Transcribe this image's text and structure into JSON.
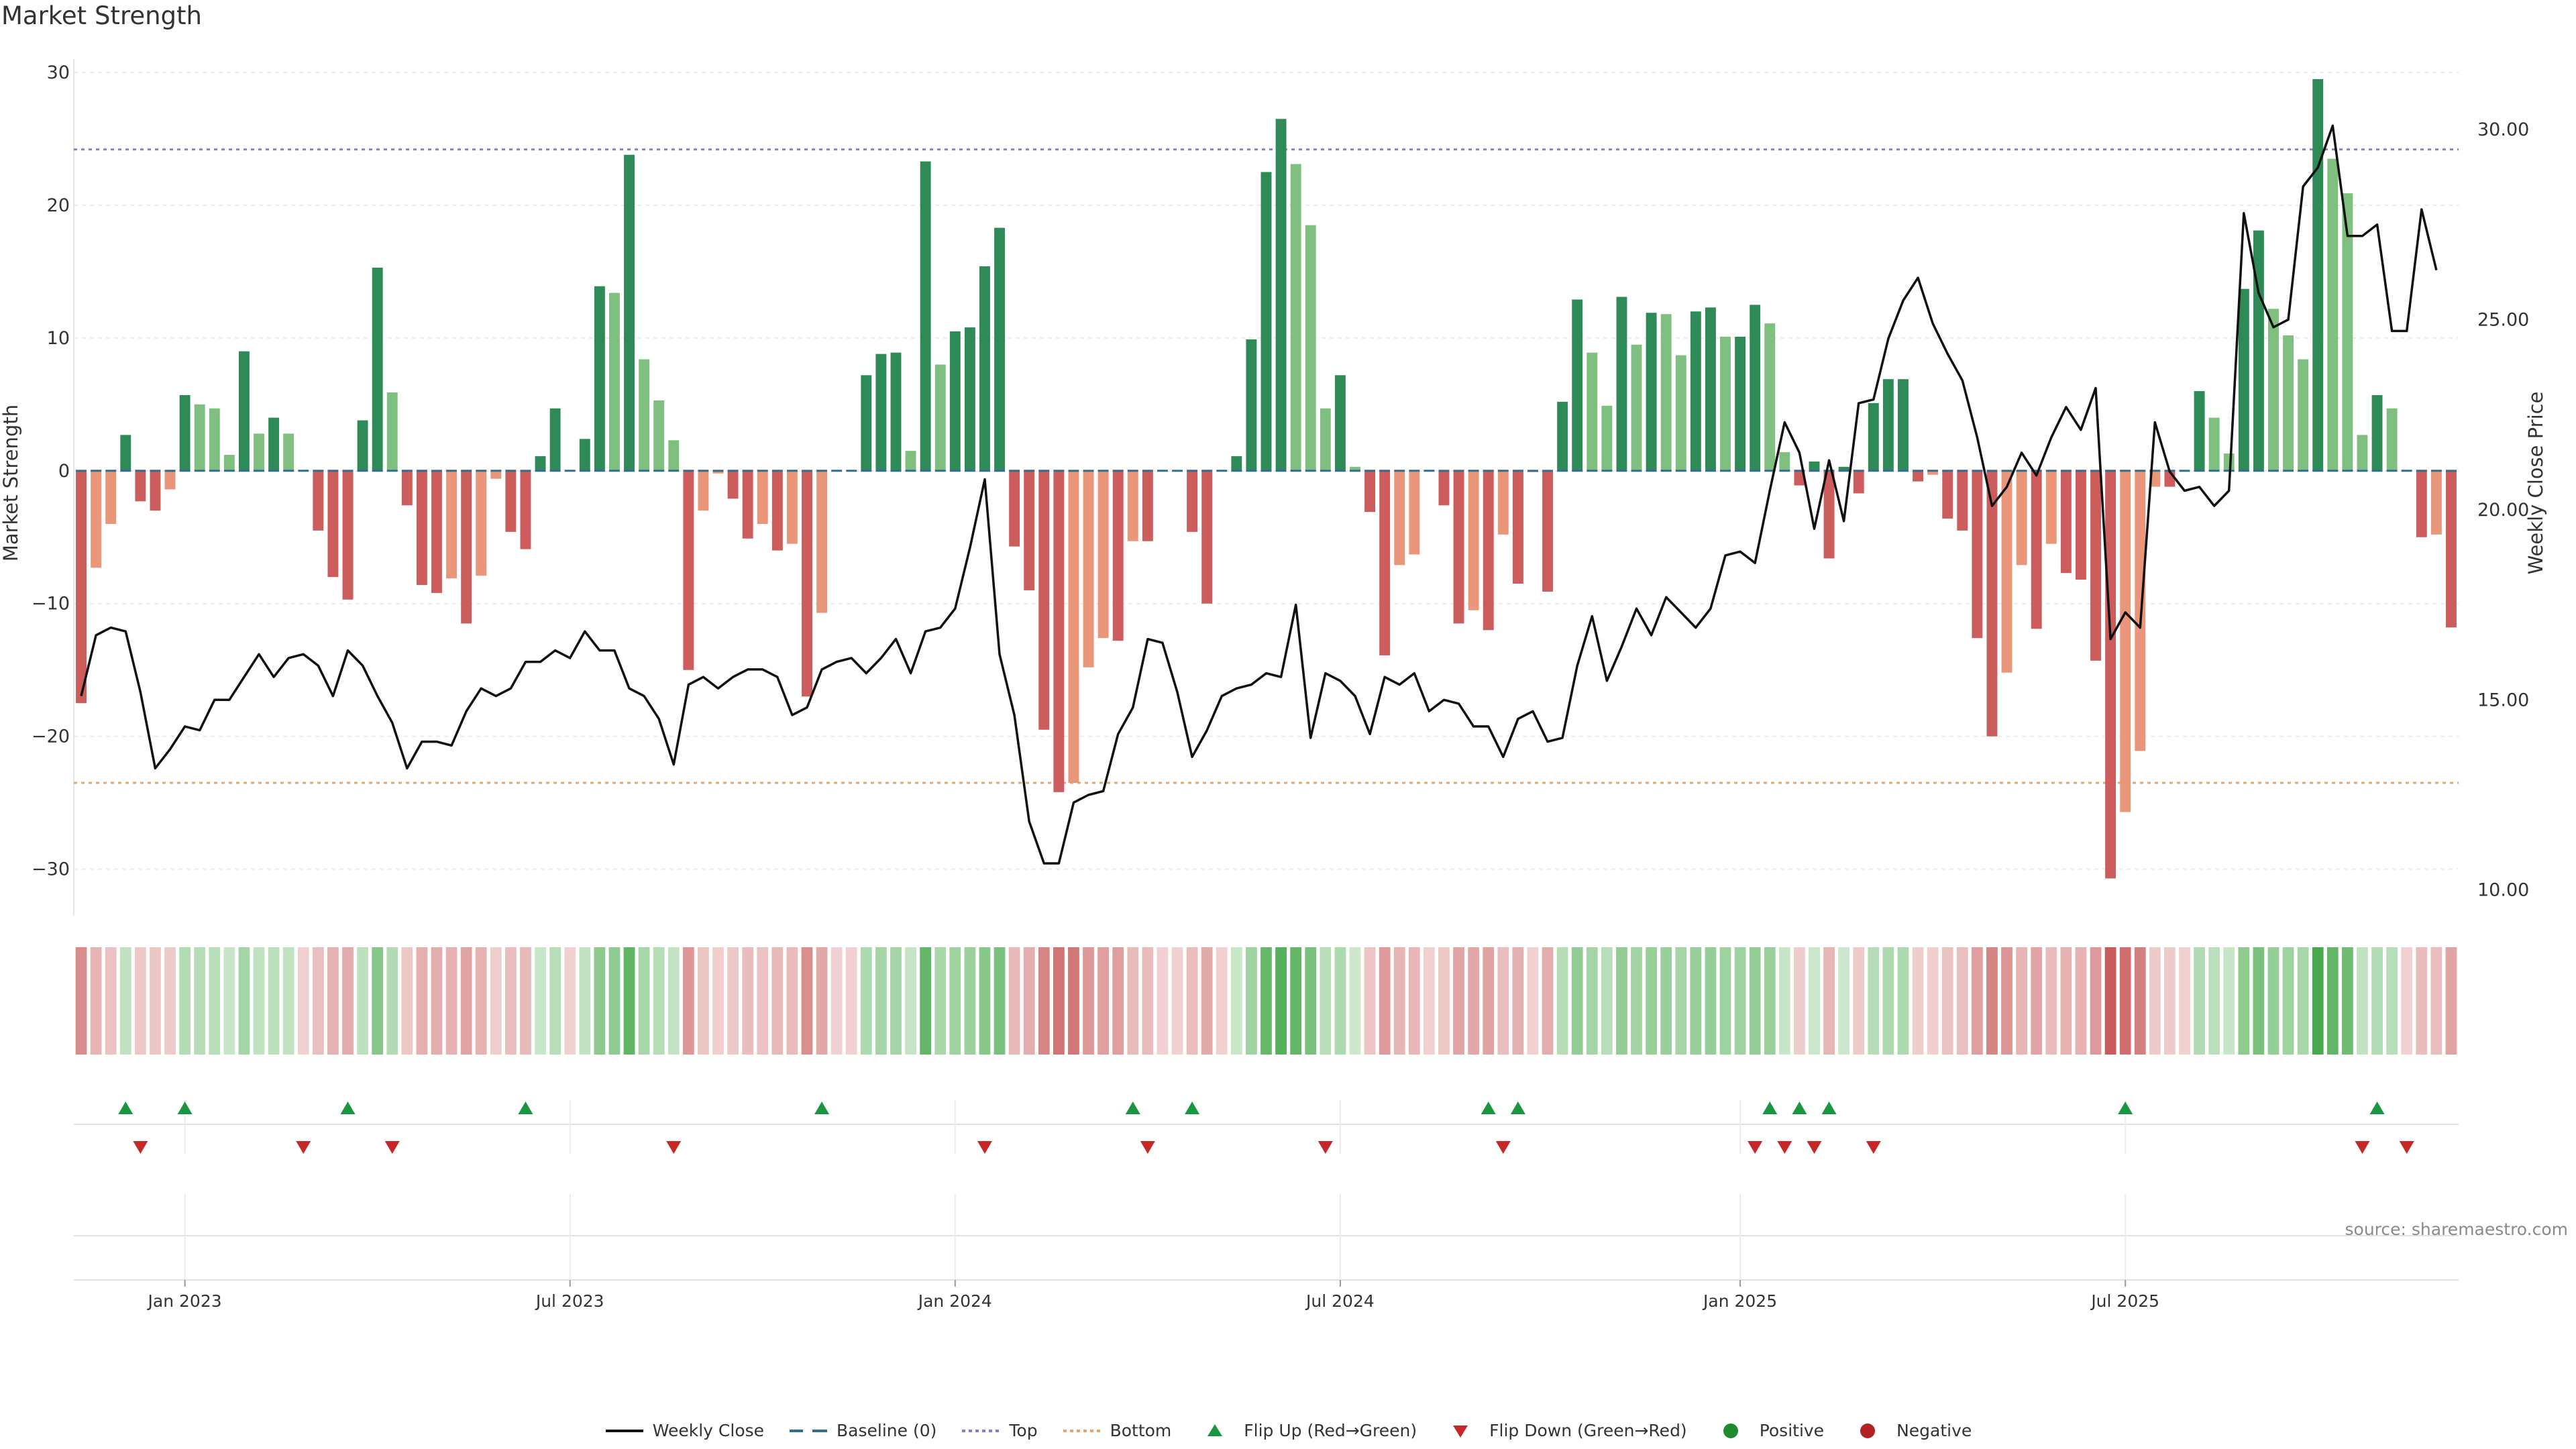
{
  "chart_data": {
    "type": "bar",
    "title": "Market Strength",
    "source_label": "source: sharemaestro.com",
    "y_left": {
      "label": "Market Strength",
      "ticks": [
        -30,
        -20,
        -10,
        0,
        10,
        20,
        30
      ],
      "range": [
        -33,
        30
      ]
    },
    "y_right": {
      "label": "Weekly Close Price",
      "ticks": [
        "10.00",
        "15.00",
        "20.00",
        "25.00",
        "30.00"
      ],
      "range": [
        9.5,
        31.5
      ]
    },
    "x_ticks": [
      "Jan 2023",
      "Jul 2023",
      "Jan 2024",
      "Jul 2024",
      "Jan 2025",
      "Jul 2025"
    ],
    "x_tick_weeks": [
      7,
      33,
      59,
      85,
      112,
      138
    ],
    "top_line": 24.2,
    "bottom_line": -23.5,
    "strength": [
      -17.5,
      -7.3,
      -4,
      2.7,
      -2.3,
      -3,
      -1.4,
      5.7,
      5,
      4.7,
      1.2,
      9,
      2.8,
      4,
      2.8,
      0,
      -4.5,
      -8,
      -9.7,
      3.8,
      15.3,
      5.9,
      -2.6,
      -8.6,
      -9.2,
      -8.1,
      -11.5,
      -7.9,
      -0.6,
      -4.6,
      -5.9,
      1.1,
      4.7,
      0,
      2.4,
      13.9,
      13.4,
      23.8,
      8.4,
      5.3,
      2.3,
      -15,
      -3,
      -0.2,
      -2.1,
      -5.1,
      -4,
      -6,
      -5.5,
      -17,
      -10.7,
      0,
      0,
      7.2,
      8.8,
      8.9,
      1.5,
      23.3,
      8,
      10.5,
      10.8,
      15.4,
      18.3,
      -5.7,
      -9,
      -19.5,
      -24.2,
      -23.5,
      -14.8,
      -12.6,
      -12.8,
      -5.3,
      -5.3,
      0,
      0,
      -4.6,
      -10,
      0,
      1.1,
      9.9,
      22.5,
      26.5,
      23.1,
      18.5,
      4.7,
      7.2,
      0.3,
      -3.1,
      -13.9,
      -7.1,
      -6.3,
      0,
      -2.6,
      -11.5,
      -10.5,
      -12,
      -4.8,
      -8.5,
      -0.1,
      -9.1,
      5.2,
      12.9,
      8.9,
      4.9,
      13.1,
      9.5,
      11.9,
      11.8,
      8.7,
      12,
      12.3,
      10.1,
      10.1,
      12.5,
      11.1,
      1.4,
      -1.1,
      0.7,
      -6.6,
      0.3,
      -1.7,
      5.1,
      6.9,
      6.9,
      -0.8,
      -0.3,
      -3.6,
      -4.5,
      -12.6,
      -20,
      -15.2,
      -7.1,
      -11.9,
      -5.5,
      -7.7,
      -8.2,
      -14.3,
      -30.7,
      -25.7,
      -21.1,
      -1.2,
      -1.2,
      0,
      6,
      4,
      1.3,
      13.7,
      18.1,
      12.2,
      10.2,
      8.4,
      29.5,
      23.5,
      20.9,
      2.7,
      5.7,
      4.7,
      0,
      -5,
      -4.8,
      -11.8
    ],
    "close": [
      15.1,
      16.7,
      16.9,
      16.8,
      15.2,
      13.2,
      13.7,
      14.3,
      14.2,
      15,
      15,
      15.6,
      16.2,
      15.6,
      16.1,
      16.2,
      15.9,
      15.1,
      16.3,
      15.9,
      15.1,
      14.4,
      13.2,
      13.9,
      13.9,
      13.8,
      14.7,
      15.3,
      15.1,
      15.3,
      16,
      16,
      16.3,
      16.1,
      16.8,
      16.3,
      16.3,
      15.3,
      15.1,
      14.5,
      13.3,
      15.4,
      15.6,
      15.3,
      15.6,
      15.8,
      15.8,
      15.6,
      14.6,
      14.8,
      15.8,
      16,
      16.1,
      15.7,
      16.1,
      16.6,
      15.7,
      16.8,
      16.9,
      17.4,
      19,
      20.8,
      16.2,
      14.6,
      11.8,
      10.7,
      10.7,
      12.3,
      12.5,
      12.6,
      14.1,
      14.8,
      16.6,
      16.5,
      15.2,
      13.5,
      14.2,
      15.1,
      15.3,
      15.4,
      15.7,
      15.6,
      17.5,
      14,
      15.7,
      15.5,
      15.1,
      14.1,
      15.6,
      15.4,
      15.7,
      14.7,
      15,
      14.9,
      14.3,
      14.3,
      13.5,
      14.5,
      14.7,
      13.9,
      14,
      15.9,
      17.2,
      15.5,
      16.4,
      17.4,
      16.7,
      17.7,
      17.3,
      16.9,
      17.4,
      18.8,
      18.9,
      18.6,
      20.5,
      22.3,
      21.5,
      19.5,
      21.3,
      19.7,
      22.8,
      22.9,
      24.5,
      25.5,
      26.1,
      24.9,
      24.1,
      23.4,
      21.9,
      20.1,
      20.6,
      21.5,
      20.9,
      21.9,
      22.7,
      22.1,
      23.2,
      16.6,
      17.3,
      16.9,
      22.3,
      21,
      20.5,
      20.6,
      20.1,
      20.5,
      27.8,
      25.7,
      24.8,
      25,
      28.5,
      29,
      30.1,
      27.2,
      27.2,
      27.5,
      24.7,
      24.7,
      27.9,
      26.3
    ],
    "flips_up": [
      3,
      7,
      18,
      30,
      50,
      71,
      75,
      95,
      97,
      114,
      116,
      118,
      138,
      155
    ],
    "flips_down": [
      4,
      15,
      21,
      40,
      61,
      72,
      84,
      96,
      113,
      115,
      117,
      121,
      154,
      157
    ],
    "legend": [
      "Weekly Close",
      "Baseline (0)",
      "Top",
      "Bottom",
      "Flip Up (Red→Green)",
      "Flip Down (Green→Red)",
      "Positive",
      "Negative"
    ],
    "colors": {
      "strong_pos": "#2e8b57",
      "weak_pos": "#7fbf7f",
      "strong_neg": "#cd5c5c",
      "weak_neg": "#e9967a",
      "top": "#8e7cc3",
      "bottom": "#e8a56a",
      "baseline": "#2f6f8f",
      "flip_up": "#1a9641",
      "flip_down": "#c62828",
      "positive_dot": "#1e8c2e",
      "negative_dot": "#b22222"
    }
  }
}
